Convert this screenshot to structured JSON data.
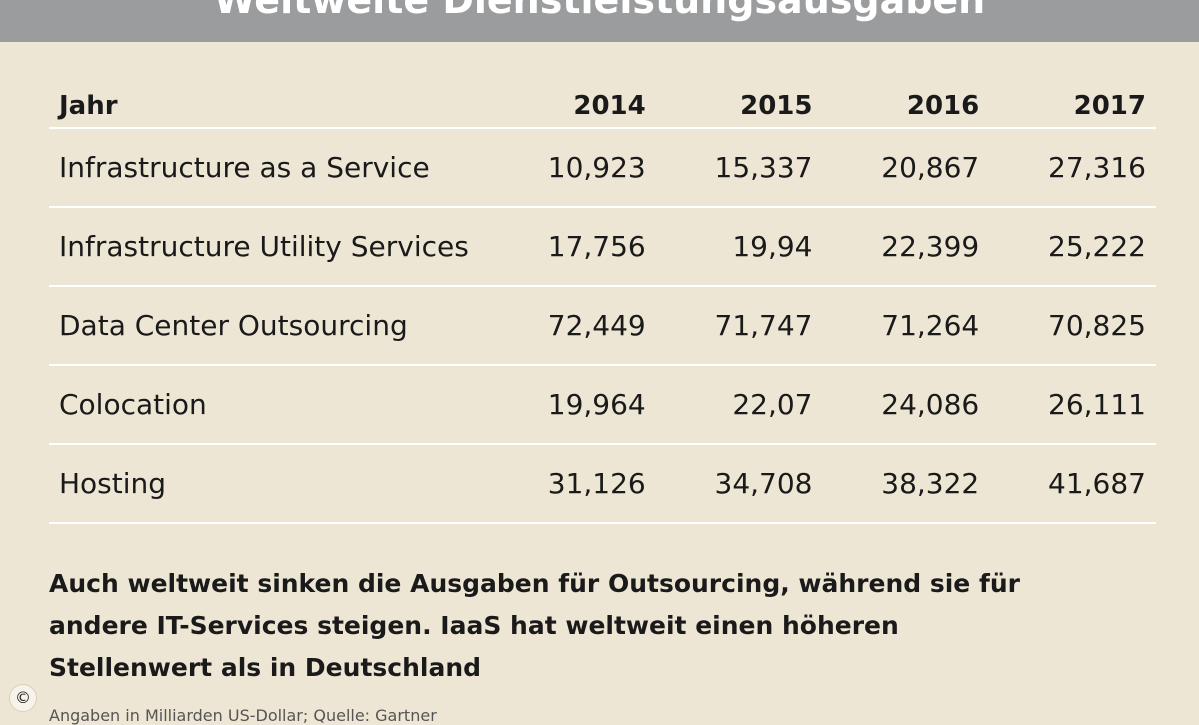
{
  "title": "Weltweite Dienstleistungsausgaben",
  "chart_data": {
    "type": "table",
    "title": "Weltweite Dienstleistungsausgaben",
    "columns": [
      "Jahr",
      "2014",
      "2015",
      "2016",
      "2017"
    ],
    "rows": [
      {
        "label": "Infrastructure as a Service",
        "values": [
          "10,923",
          "15,337",
          "20,867",
          "27,316"
        ]
      },
      {
        "label": "Infrastructure Utility Services",
        "values": [
          "17,756",
          "19,94",
          "22,399",
          "25,222"
        ]
      },
      {
        "label": "Data Center Outsourcing",
        "values": [
          "72,449",
          "71,747",
          "71,264",
          "70,825"
        ]
      },
      {
        "label": "Colocation",
        "values": [
          "19,964",
          "22,07",
          "24,086",
          "26,111"
        ]
      },
      {
        "label": "Hosting",
        "values": [
          "31,126",
          "34,708",
          "38,322",
          "41,687"
        ]
      }
    ]
  },
  "note": "Auch weltweit sinken die Ausgaben für Outsourcing, während sie für andere IT-Services steigen. IaaS hat weltweit einen höheren Stellenwert als in Deutschland",
  "source": "Angaben in Milliarden US-Dollar; Quelle: Gartner",
  "copyright_symbol": "©"
}
